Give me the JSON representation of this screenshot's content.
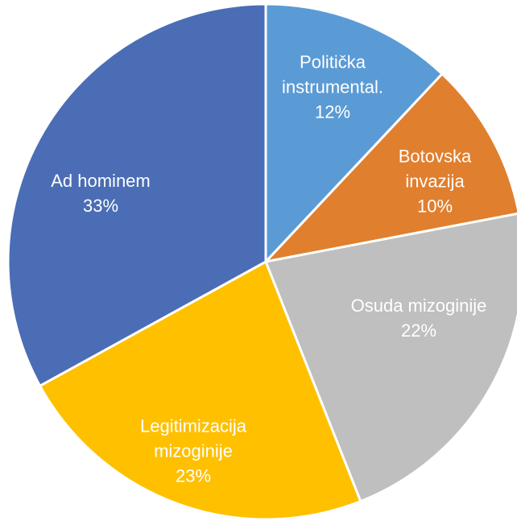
{
  "chart_data": {
    "type": "pie",
    "categories": [
      "Politička instrumental.",
      "Botovska invazija",
      "Osuda mizoginije",
      "Legitimizacija mizoginije",
      "Ad hominem"
    ],
    "values": [
      12,
      10,
      22,
      23,
      33
    ],
    "value_labels": [
      "12%",
      "10%",
      "22%",
      "23%",
      "33%"
    ],
    "colors": [
      "#5b9bd5",
      "#e07f2e",
      "#bfbfbf",
      "#ffc000",
      "#4a6db5"
    ]
  }
}
